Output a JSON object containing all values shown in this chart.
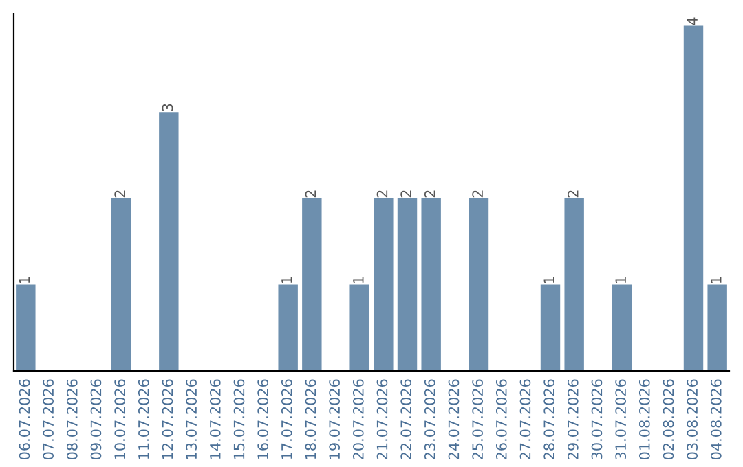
{
  "chart_data": {
    "type": "bar",
    "categories": [
      "06.07.2026",
      "07.07.2026",
      "08.07.2026",
      "09.07.2026",
      "10.07.2026",
      "11.07.2026",
      "12.07.2026",
      "13.07.2026",
      "14.07.2026",
      "15.07.2026",
      "16.07.2026",
      "17.07.2026",
      "18.07.2026",
      "19.07.2026",
      "20.07.2026",
      "21.07.2026",
      "22.07.2026",
      "23.07.2026",
      "24.07.2026",
      "25.07.2026",
      "26.07.2026",
      "27.07.2026",
      "28.07.2026",
      "29.07.2026",
      "30.07.2026",
      "31.07.2026",
      "01.08.2026",
      "02.08.2026",
      "03.08.2026",
      "04.08.2026"
    ],
    "values": [
      1,
      0,
      0,
      0,
      2,
      0,
      3,
      0,
      0,
      0,
      0,
      1,
      2,
      0,
      1,
      2,
      2,
      2,
      0,
      2,
      0,
      0,
      1,
      2,
      0,
      1,
      0,
      0,
      4,
      1
    ],
    "value_labels": [
      "1",
      null,
      null,
      null,
      "2",
      null,
      "3",
      null,
      null,
      null,
      null,
      "1",
      "2",
      null,
      "1",
      "2",
      "2",
      "2",
      null,
      "2",
      null,
      null,
      "1",
      "2",
      null,
      "1",
      null,
      null,
      "4",
      "1"
    ],
    "color": "#6d8fae",
    "grid": false,
    "legend": false,
    "tick_labels": "x"
  }
}
